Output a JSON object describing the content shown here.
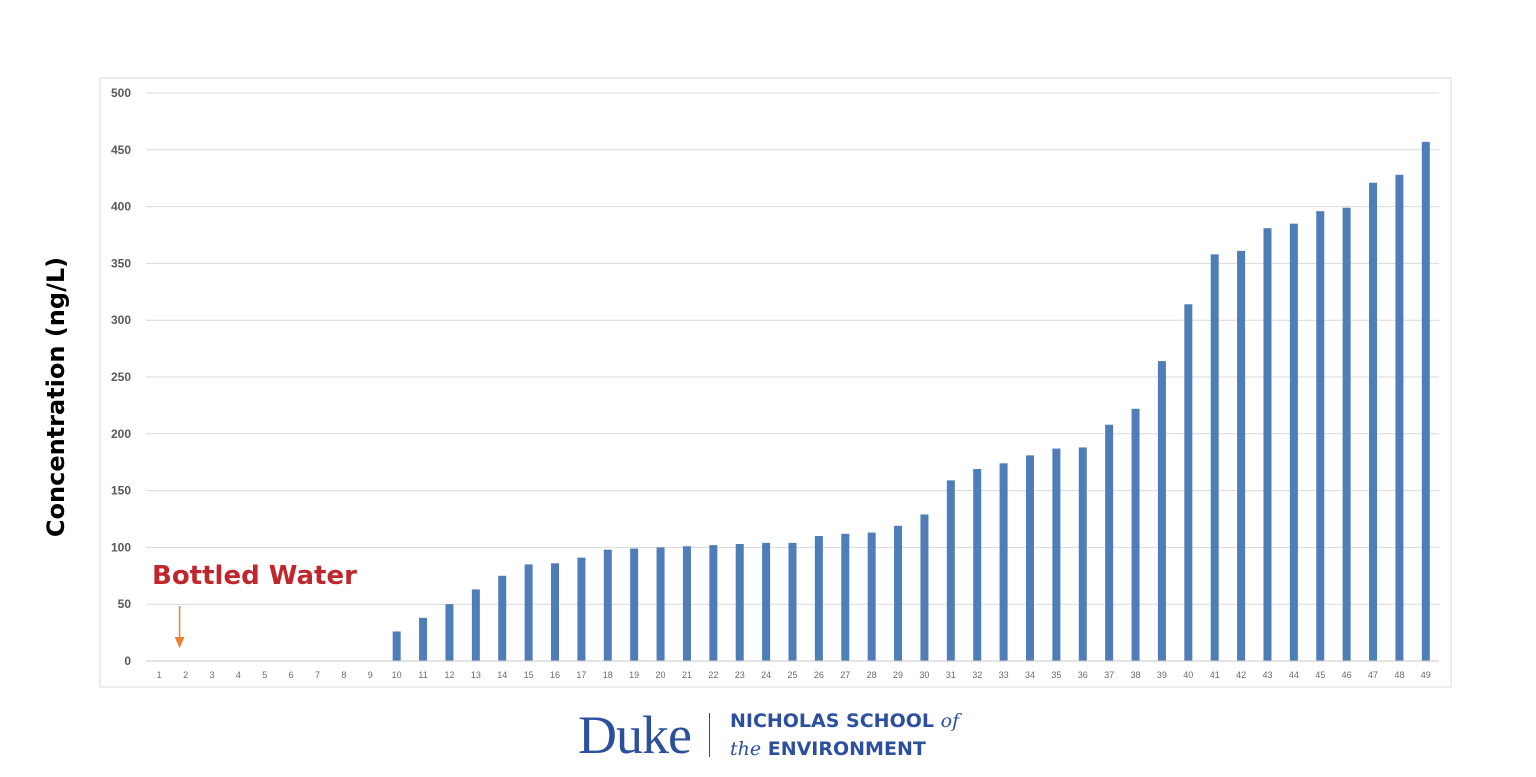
{
  "chart_data": {
    "type": "bar",
    "title": "",
    "xlabel": "",
    "ylabel": "Concentration (ng/L)",
    "ylim": [
      0,
      500
    ],
    "yticks": [
      0,
      50,
      100,
      150,
      200,
      250,
      300,
      350,
      400,
      450,
      500
    ],
    "grid": true,
    "categories": [
      "1",
      "2",
      "3",
      "4",
      "5",
      "6",
      "7",
      "8",
      "9",
      "10",
      "11",
      "12",
      "13",
      "14",
      "15",
      "16",
      "17",
      "18",
      "19",
      "20",
      "21",
      "22",
      "23",
      "24",
      "25",
      "26",
      "27",
      "28",
      "29",
      "30",
      "31",
      "32",
      "33",
      "34",
      "35",
      "36",
      "37",
      "38",
      "39",
      "40",
      "41",
      "42",
      "43",
      "44",
      "45",
      "46",
      "47",
      "48",
      "49"
    ],
    "values": [
      0,
      0,
      0,
      0,
      0,
      0,
      0,
      0,
      0,
      26,
      38,
      50,
      63,
      75,
      85,
      86,
      91,
      98,
      99,
      100,
      101,
      102,
      103,
      104,
      104,
      110,
      112,
      113,
      119,
      129,
      159,
      169,
      174,
      181,
      187,
      188,
      208,
      222,
      264,
      314,
      358,
      361,
      381,
      385,
      396,
      399,
      421,
      428,
      457
    ],
    "bar_color": "#4f7db7",
    "annotation": {
      "text": "Bottled Water",
      "text_color": "#c0272d",
      "arrow_color": "#ed7d31",
      "category": "2"
    }
  },
  "footer": {
    "wordmark": "Duke",
    "school_line1": "NICHOLAS SCHOOL",
    "school_line1_suffix": "of",
    "school_line2_prefix": "the",
    "school_line2": "ENVIRONMENT"
  }
}
